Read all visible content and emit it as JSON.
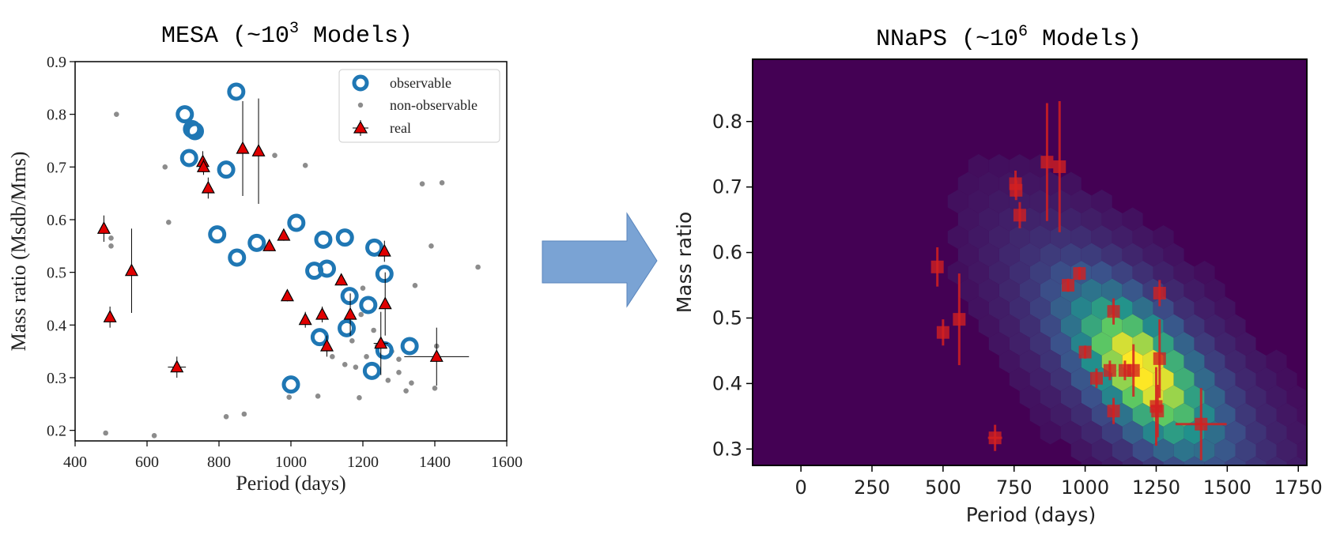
{
  "colors": {
    "observable": "#1f77b4",
    "non_observable": "#8c8c8c",
    "real_fill": "#e00000",
    "real_edge": "#000000",
    "hex_background": "#440154",
    "arrow_fill": "#7aa3d4",
    "arrow_edge": "#5a86bd",
    "nnaps_points": "#d42020"
  },
  "arrow": {
    "icon": "right-arrow-icon"
  },
  "chart_data": [
    {
      "type": "scatter",
      "title_main": "MESA (~10",
      "title_sup": "3",
      "title_end": " Models)",
      "xlabel": "Period (days)",
      "ylabel": "Mass ratio (Msdb/Mms)",
      "xlim": [
        400,
        1600
      ],
      "ylim": [
        0.18,
        0.9
      ],
      "x_ticks": [
        400,
        600,
        800,
        1000,
        1200,
        1400,
        1600
      ],
      "y_ticks": [
        0.2,
        0.3,
        0.4,
        0.5,
        0.6,
        0.7,
        0.8,
        0.9
      ],
      "x_tick_labels": [
        "400",
        "600",
        "800",
        "1000",
        "1200",
        "1400",
        "1600"
      ],
      "y_tick_labels": [
        "0.2",
        "0.3",
        "0.4",
        "0.5",
        "0.6",
        "0.7",
        "0.8",
        "0.9"
      ],
      "grid": false,
      "legend_position": "top-right",
      "legend": [
        "observable",
        "non-observable",
        "real"
      ],
      "series": [
        {
          "name": "observable",
          "marker": "open-circle",
          "points": [
            [
              848,
              0.843
            ],
            [
              705,
              0.8
            ],
            [
              725,
              0.772
            ],
            [
              733,
              0.768
            ],
            [
              717,
              0.717
            ],
            [
              820,
              0.695
            ],
            [
              795,
              0.572
            ],
            [
              1015,
              0.594
            ],
            [
              905,
              0.556
            ],
            [
              850,
              0.528
            ],
            [
              1090,
              0.562
            ],
            [
              1150,
              0.566
            ],
            [
              1232,
              0.547
            ],
            [
              1065,
              0.503
            ],
            [
              1100,
              0.507
            ],
            [
              1260,
              0.497
            ],
            [
              1163,
              0.455
            ],
            [
              1215,
              0.438
            ],
            [
              1155,
              0.394
            ],
            [
              1080,
              0.377
            ],
            [
              1260,
              0.352
            ],
            [
              1330,
              0.36
            ],
            [
              1225,
              0.313
            ],
            [
              1000,
              0.287
            ]
          ]
        },
        {
          "name": "non-observable",
          "marker": "dot",
          "points": [
            [
              515,
              0.8
            ],
            [
              650,
              0.7
            ],
            [
              1040,
              0.703
            ],
            [
              955,
              0.722
            ],
            [
              660,
              0.595
            ],
            [
              500,
              0.565
            ],
            [
              500,
              0.55
            ],
            [
              820,
              0.226
            ],
            [
              870,
              0.231
            ],
            [
              995,
              0.263
            ],
            [
              1075,
              0.265
            ],
            [
              1190,
              0.262
            ],
            [
              1270,
              0.295
            ],
            [
              1320,
              0.275
            ],
            [
              1345,
              0.475
            ],
            [
              1390,
              0.55
            ],
            [
              1420,
              0.67
            ],
            [
              1365,
              0.668
            ],
            [
              1520,
              0.51
            ],
            [
              485,
              0.195
            ],
            [
              620,
              0.19
            ],
            [
              1150,
              0.325
            ],
            [
              1180,
              0.32
            ],
            [
              1210,
              0.34
            ],
            [
              1240,
              0.36
            ],
            [
              1115,
              0.34
            ],
            [
              1300,
              0.31
            ],
            [
              1400,
              0.28
            ],
            [
              1405,
              0.36
            ],
            [
              1300,
              0.335
            ],
            [
              1170,
              0.37
            ],
            [
              1195,
              0.42
            ],
            [
              1200,
              0.47
            ],
            [
              1230,
              0.39
            ],
            [
              1335,
              0.29
            ],
            [
              1280,
              0.35
            ]
          ]
        },
        {
          "name": "real",
          "marker": "triangle",
          "points": [
            {
              "x": 480,
              "y": 0.583,
              "yerr": 0.025,
              "xerr": 0
            },
            {
              "x": 497,
              "y": 0.415,
              "yerr": 0.02,
              "xerr": 0
            },
            {
              "x": 557,
              "y": 0.503,
              "yerr": 0.08,
              "xerr": 0
            },
            {
              "x": 683,
              "y": 0.32,
              "yerr": 0.02,
              "xerr": 25
            },
            {
              "x": 755,
              "y": 0.71,
              "yerr": 0.02,
              "xerr": 0
            },
            {
              "x": 757,
              "y": 0.7,
              "yerr": 0.015,
              "xerr": 0
            },
            {
              "x": 770,
              "y": 0.66,
              "yerr": 0.02,
              "xerr": 0
            },
            {
              "x": 866,
              "y": 0.735,
              "yerr": 0.09,
              "xerr": 0
            },
            {
              "x": 910,
              "y": 0.73,
              "yerr": 0.1,
              "xerr": 0
            },
            {
              "x": 940,
              "y": 0.55,
              "yerr": 0.01,
              "xerr": 0
            },
            {
              "x": 980,
              "y": 0.57,
              "yerr": 0.01,
              "xerr": 0
            },
            {
              "x": 990,
              "y": 0.455,
              "yerr": 0.01,
              "xerr": 0
            },
            {
              "x": 1040,
              "y": 0.41,
              "yerr": 0.015,
              "xerr": 0
            },
            {
              "x": 1087,
              "y": 0.42,
              "yerr": 0.015,
              "xerr": 0
            },
            {
              "x": 1100,
              "y": 0.36,
              "yerr": 0.02,
              "xerr": 0
            },
            {
              "x": 1140,
              "y": 0.485,
              "yerr": 0.01,
              "xerr": 0
            },
            {
              "x": 1165,
              "y": 0.42,
              "yerr": 0.04,
              "xerr": 0
            },
            {
              "x": 1250,
              "y": 0.365,
              "yerr": 0.06,
              "xerr": 20
            },
            {
              "x": 1260,
              "y": 0.54,
              "yerr": 0.02,
              "xerr": 0
            },
            {
              "x": 1262,
              "y": 0.44,
              "yerr": 0.06,
              "xerr": 0
            },
            {
              "x": 1405,
              "y": 0.34,
              "yerr": 0.055,
              "xerr": 90
            }
          ]
        }
      ]
    },
    {
      "type": "heatmap",
      "title_main": "NNaPS (~10",
      "title_sup": "6",
      "title_end": " Models)",
      "xlabel": "Period (days)",
      "ylabel": "Mass ratio",
      "xlim": [
        -170,
        1780
      ],
      "ylim": [
        0.275,
        0.895
      ],
      "x_ticks": [
        0,
        250,
        500,
        750,
        1000,
        1250,
        1500,
        1750
      ],
      "y_ticks": [
        0.3,
        0.4,
        0.5,
        0.6,
        0.7,
        0.8
      ],
      "x_tick_labels": [
        "0",
        "250",
        "500",
        "750",
        "1000",
        "1250",
        "1500",
        "1750"
      ],
      "y_tick_labels": [
        "0.3",
        "0.4",
        "0.5",
        "0.6",
        "0.7",
        "0.8"
      ],
      "grid": false,
      "colormap": "viridis",
      "density_peak": [
        1200,
        0.42
      ],
      "overlay_points": [
        {
          "x": 480,
          "y": 0.578,
          "yerr": 0.03
        },
        {
          "x": 500,
          "y": 0.478,
          "yerr": 0.02
        },
        {
          "x": 557,
          "y": 0.498,
          "yerr": 0.07
        },
        {
          "x": 683,
          "y": 0.317,
          "yerr": 0.02,
          "xerr": 25
        },
        {
          "x": 755,
          "y": 0.705,
          "yerr": 0.02
        },
        {
          "x": 757,
          "y": 0.695,
          "yerr": 0.015
        },
        {
          "x": 770,
          "y": 0.657,
          "yerr": 0.02
        },
        {
          "x": 866,
          "y": 0.738,
          "yerr": 0.09
        },
        {
          "x": 910,
          "y": 0.731,
          "yerr": 0.1
        },
        {
          "x": 940,
          "y": 0.55,
          "yerr": 0.01
        },
        {
          "x": 980,
          "y": 0.568,
          "yerr": 0.01
        },
        {
          "x": 1000,
          "y": 0.448,
          "yerr": 0.01
        },
        {
          "x": 1040,
          "y": 0.408,
          "yerr": 0.015
        },
        {
          "x": 1087,
          "y": 0.42,
          "yerr": 0.015
        },
        {
          "x": 1100,
          "y": 0.51,
          "yerr": 0.02
        },
        {
          "x": 1100,
          "y": 0.358,
          "yerr": 0.02
        },
        {
          "x": 1140,
          "y": 0.42,
          "yerr": 0.015
        },
        {
          "x": 1170,
          "y": 0.42,
          "yerr": 0.04
        },
        {
          "x": 1250,
          "y": 0.365,
          "yerr": 0.06,
          "xerr": 20
        },
        {
          "x": 1255,
          "y": 0.358,
          "yerr": 0.04
        },
        {
          "x": 1262,
          "y": 0.538,
          "yerr": 0.02
        },
        {
          "x": 1262,
          "y": 0.438,
          "yerr": 0.06
        },
        {
          "x": 1408,
          "y": 0.338,
          "yerr": 0.055,
          "xerr": 90
        }
      ]
    }
  ]
}
